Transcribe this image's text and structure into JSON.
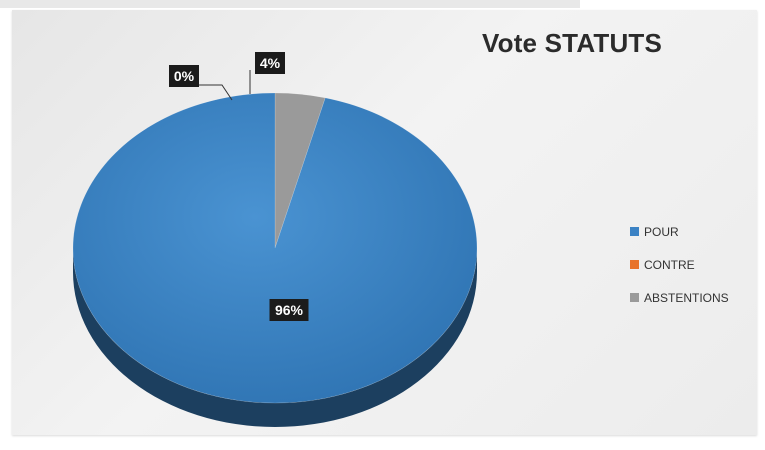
{
  "chart_data": {
    "type": "pie",
    "title": "Vote STATUTS",
    "categories": [
      "POUR",
      "CONTRE",
      "ABSTENTIONS"
    ],
    "values": [
      96,
      0,
      4
    ],
    "labels": [
      "96%",
      "0%",
      "4%"
    ],
    "colors": [
      "#3b82c4",
      "#e8732a",
      "#9a9a9a"
    ],
    "legend_position": "right",
    "style": "3d"
  }
}
